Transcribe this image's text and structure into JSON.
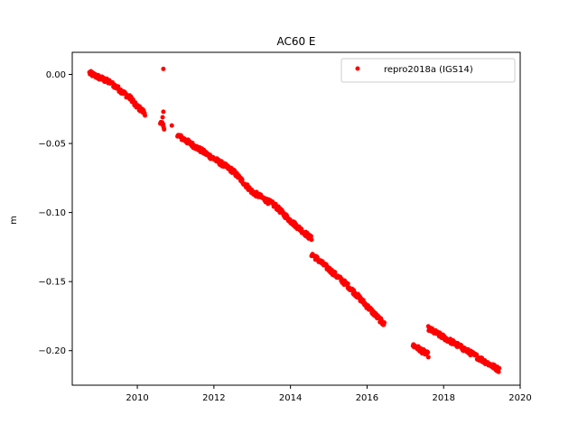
{
  "chart_data": {
    "type": "scatter",
    "title": "AC60 E",
    "xlabel": "",
    "ylabel": "m",
    "xlim": [
      2008.3,
      2020
    ],
    "ylim": [
      -0.225,
      0.016
    ],
    "xticks": [
      2010,
      2012,
      2014,
      2016,
      2018,
      2020
    ],
    "yticks": [
      0.0,
      -0.05,
      -0.1,
      -0.15,
      -0.2
    ],
    "ytick_labels": [
      "0.00",
      "−0.05",
      "−0.10",
      "−0.15",
      "−0.20"
    ],
    "grid": false,
    "legend_position": "top-right",
    "series": [
      {
        "name": "repro2018a (IGS14)",
        "color": "#ff0000",
        "marker": "circle",
        "segments": [
          {
            "x": [
              2008.75,
              2009.3
            ],
            "y": [
              0.001,
              -0.006
            ]
          },
          {
            "x": [
              2009.35,
              2009.9
            ],
            "y": [
              -0.007,
              -0.019
            ]
          },
          {
            "x": [
              2009.9,
              2010.2
            ],
            "y": [
              -0.021,
              -0.028
            ]
          },
          {
            "x": [
              2010.6,
              2010.7
            ],
            "y": [
              -0.035,
              -0.038
            ]
          },
          {
            "x": [
              2011.05,
              2012.5
            ],
            "y": [
              -0.044,
              -0.07
            ]
          },
          {
            "x": [
              2012.5,
              2013.0
            ],
            "y": [
              -0.07,
              -0.085
            ]
          },
          {
            "x": [
              2013.0,
              2013.6
            ],
            "y": [
              -0.085,
              -0.095
            ]
          },
          {
            "x": [
              2013.6,
              2014.0
            ],
            "y": [
              -0.095,
              -0.106
            ]
          },
          {
            "x": [
              2014.0,
              2014.55
            ],
            "y": [
              -0.106,
              -0.119
            ]
          },
          {
            "x": [
              2014.55,
              2015.5
            ],
            "y": [
              -0.13,
              -0.153
            ]
          },
          {
            "x": [
              2015.5,
              2016.45
            ],
            "y": [
              -0.153,
              -0.181
            ]
          },
          {
            "x": [
              2017.2,
              2017.6
            ],
            "y": [
              -0.196,
              -0.203
            ]
          },
          {
            "x": [
              2017.6,
              2018.3
            ],
            "y": [
              -0.184,
              -0.195
            ]
          },
          {
            "x": [
              2018.3,
              2019.45
            ],
            "y": [
              -0.195,
              -0.214
            ]
          }
        ],
        "isolated": [
          {
            "x": 2010.68,
            "y": 0.004
          },
          {
            "x": 2010.68,
            "y": -0.027
          },
          {
            "x": 2010.66,
            "y": -0.031
          },
          {
            "x": 2010.9,
            "y": -0.037
          }
        ]
      }
    ]
  }
}
